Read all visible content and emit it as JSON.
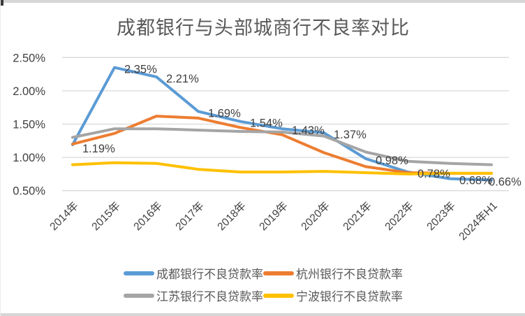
{
  "chart_data": {
    "type": "line",
    "title": "成都银行与头部城商行不良率对比",
    "categories": [
      "2014年",
      "2015年",
      "2016年",
      "2017年",
      "2018年",
      "2019年",
      "2020年",
      "2021年",
      "2022年",
      "2023年",
      "2024年H1"
    ],
    "series": [
      {
        "name": "成都银行不良贷款率",
        "color": "#5B9BD5",
        "values": [
          1.19,
          2.35,
          2.21,
          1.69,
          1.54,
          1.43,
          1.37,
          0.98,
          0.78,
          0.68,
          0.66
        ],
        "data_labels": [
          "1.19%",
          "2.35%",
          "2.21%",
          "1.69%",
          "1.54%",
          "1.43%",
          "1.37%",
          "0.98%",
          "0.78%",
          "0.68%",
          "0.66%"
        ]
      },
      {
        "name": "杭州银行不良贷款率",
        "color": "#ED7D31",
        "values": [
          1.2,
          1.36,
          1.62,
          1.59,
          1.45,
          1.34,
          1.07,
          0.86,
          0.77,
          0.76,
          0.76
        ]
      },
      {
        "name": "江苏银行不良贷款率",
        "color": "#A5A5A5",
        "values": [
          1.3,
          1.43,
          1.43,
          1.41,
          1.39,
          1.38,
          1.32,
          1.08,
          0.94,
          0.91,
          0.89
        ]
      },
      {
        "name": "宁波银行不良贷款率",
        "color": "#FFC000",
        "values": [
          0.89,
          0.92,
          0.91,
          0.82,
          0.78,
          0.78,
          0.79,
          0.77,
          0.75,
          0.76,
          0.76
        ]
      }
    ],
    "y_axis": {
      "ticks": [
        "2.50%",
        "2.00%",
        "1.50%",
        "1.00%",
        "0.50%"
      ],
      "tick_values": [
        2.5,
        2.0,
        1.5,
        1.0,
        0.5
      ],
      "min": 0.5,
      "max": 2.5,
      "step": 0.5
    },
    "grid": true,
    "legend_position": "bottom",
    "colors": {
      "gridline": "#D9D9D9",
      "axis_text": "#404040",
      "data_label_text": "#3f3f3f",
      "title_text": "#595959"
    }
  }
}
